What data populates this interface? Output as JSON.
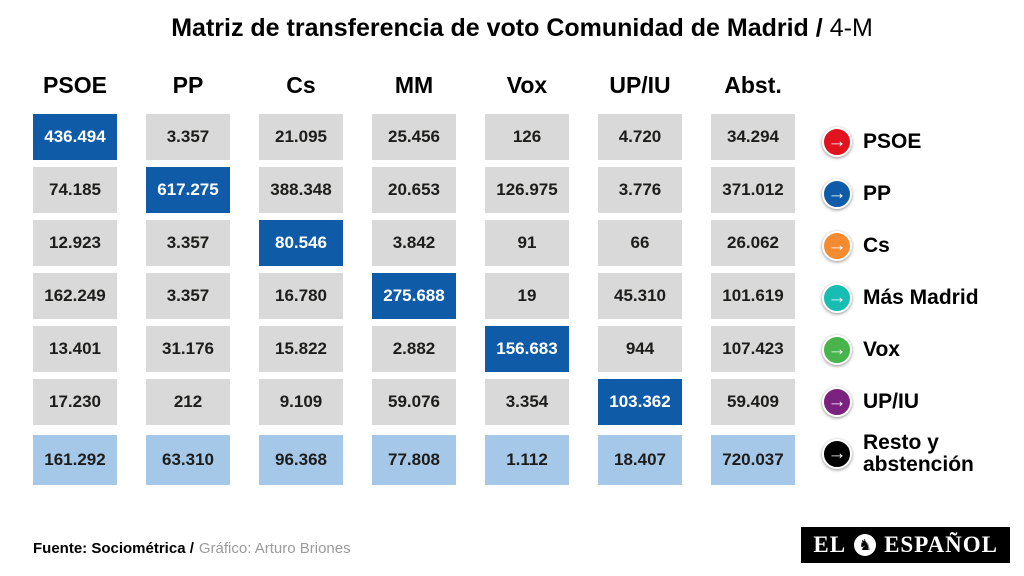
{
  "title": {
    "main": "Matriz de transferencia de voto Comunidad de Madrid /",
    "suffix": "4-M"
  },
  "matrix": {
    "columns": [
      {
        "header": "PSOE",
        "cells": [
          "436.494",
          "74.185",
          "12.923",
          "162.249",
          "13.401",
          "17.230",
          "161.292"
        ]
      },
      {
        "header": "PP",
        "cells": [
          "3.357",
          "617.275",
          "3.357",
          "3.357",
          "31.176",
          "212",
          "63.310"
        ]
      },
      {
        "header": "Cs",
        "cells": [
          "21.095",
          "388.348",
          "80.546",
          "16.780",
          "15.822",
          "9.109",
          "96.368"
        ]
      },
      {
        "header": "MM",
        "cells": [
          "25.456",
          "20.653",
          "3.842",
          "275.688",
          "2.882",
          "59.076",
          "77.808"
        ]
      },
      {
        "header": "Vox",
        "cells": [
          "126",
          "126.975",
          "91",
          "19",
          "156.683",
          "3.354",
          "1.112"
        ]
      },
      {
        "header": "UP/IU",
        "cells": [
          "4.720",
          "3.776",
          "66",
          "45.310",
          "944",
          "103.362",
          "18.407"
        ]
      },
      {
        "header": "Abst.",
        "cells": [
          "34.294",
          "371.012",
          "26.062",
          "101.619",
          "107.423",
          "59.409",
          "720.037"
        ]
      }
    ]
  },
  "legend": {
    "arrow_glyph": "→",
    "items": [
      {
        "label": "PSOE",
        "color": "#e0131e"
      },
      {
        "label": "PP",
        "color": "#0f5ba8"
      },
      {
        "label": "Cs",
        "color": "#f58b31"
      },
      {
        "label": "Más Madrid",
        "color": "#17bdb2"
      },
      {
        "label": "Vox",
        "color": "#47b44c"
      },
      {
        "label": "UP/IU",
        "color": "#7b2180"
      },
      {
        "label": "Resto y\nabstención",
        "color": "#000000"
      }
    ]
  },
  "colors": {
    "highlight_cell": "#0f5ba8",
    "normal_cell": "#d9d9d9",
    "bottom_row_cell": "#a5c8e9"
  },
  "footer": {
    "source": "Fuente: Sociométrica /",
    "credit": "Gráfico: Arturo Briones"
  },
  "logo": {
    "left": "EL",
    "right": "ESPAÑOL",
    "emblem_glyph": "♞"
  },
  "chart_data": {
    "type": "table",
    "title": "Matriz de transferencia de voto Comunidad de Madrid / 4-M",
    "columns": [
      "PSOE",
      "PP",
      "Cs",
      "MM",
      "Vox",
      "UP/IU",
      "Abst."
    ],
    "rows": [
      "PSOE",
      "PP",
      "Cs",
      "Más Madrid",
      "Vox",
      "UP/IU",
      "Resto y abstención"
    ],
    "values": [
      [
        436494,
        3357,
        21095,
        25456,
        126,
        4720,
        34294
      ],
      [
        74185,
        617275,
        388348,
        20653,
        126975,
        3776,
        371012
      ],
      [
        12923,
        3357,
        80546,
        3842,
        91,
        66,
        26062
      ],
      [
        162249,
        3357,
        16780,
        275688,
        19,
        45310,
        101619
      ],
      [
        13401,
        31176,
        15822,
        2882,
        156683,
        944,
        107423
      ],
      [
        17230,
        212,
        9109,
        59076,
        3354,
        103362,
        59409
      ],
      [
        161292,
        63310,
        96368,
        77808,
        1112,
        18407,
        720037
      ]
    ],
    "highlighted_diagonal": true,
    "bottom_row_shaded": true,
    "legend_position": "right"
  }
}
